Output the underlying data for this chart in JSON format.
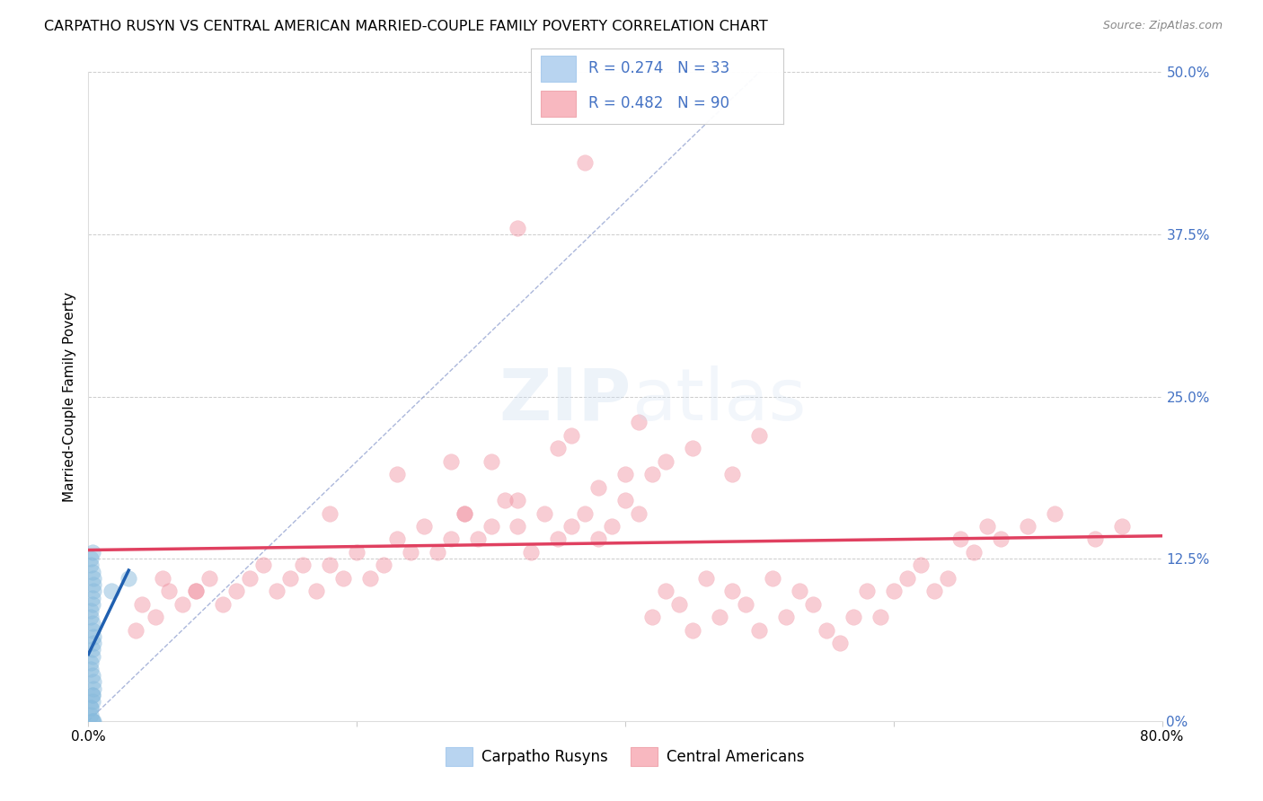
{
  "title": "CARPATHO RUSYN VS CENTRAL AMERICAN MARRIED-COUPLE FAMILY POVERTY CORRELATION CHART",
  "source": "Source: ZipAtlas.com",
  "ylabel": "Married-Couple Family Poverty",
  "xlim": [
    0.0,
    0.8
  ],
  "ylim": [
    0.0,
    0.5
  ],
  "yticks": [
    0.0,
    0.125,
    0.25,
    0.375,
    0.5
  ],
  "ytick_labels": [
    "0%",
    "12.5%",
    "25.0%",
    "37.5%",
    "50.0%"
  ],
  "xtick_labels": [
    "0.0%",
    "",
    "",
    "",
    "80.0%"
  ],
  "legend_label1": "Carpatho Rusyns",
  "legend_label2": "Central Americans",
  "blue_scatter_color": "#88bbdd",
  "pink_scatter_color": "#f090a0",
  "blue_line_color": "#2060b0",
  "pink_line_color": "#e04060",
  "diag_line_color": "#8899cc",
  "text_blue": "#4472c4",
  "legend_blue_fill": "#b8d4f0",
  "legend_pink_fill": "#f8b8c0",
  "grid_color": "#cccccc",
  "R_blue": 0.274,
  "N_blue": 33,
  "R_pink": 0.482,
  "N_pink": 90,
  "blue_x": [
    0.002,
    0.003,
    0.004,
    0.002,
    0.003,
    0.004,
    0.003,
    0.002,
    0.003,
    0.004,
    0.003,
    0.002,
    0.003,
    0.004,
    0.002,
    0.003,
    0.004,
    0.003,
    0.002,
    0.003,
    0.004,
    0.003,
    0.002,
    0.003,
    0.004,
    0.003,
    0.002,
    0.003,
    0.004,
    0.003,
    0.002,
    0.03,
    0.017
  ],
  "blue_y": [
    0.01,
    0.02,
    0.03,
    0.04,
    0.05,
    0.06,
    0.07,
    0.08,
    0.09,
    0.1,
    0.0,
    0.01,
    0.02,
    0.0,
    0.12,
    0.13,
    0.11,
    0.0,
    0.005,
    0.015,
    0.025,
    0.035,
    0.045,
    0.055,
    0.065,
    0.075,
    0.085,
    0.095,
    0.105,
    0.115,
    0.125,
    0.11,
    0.1
  ],
  "pink_x": [
    0.035,
    0.04,
    0.05,
    0.06,
    0.055,
    0.07,
    0.08,
    0.09,
    0.1,
    0.11,
    0.12,
    0.13,
    0.14,
    0.15,
    0.16,
    0.17,
    0.18,
    0.19,
    0.2,
    0.21,
    0.22,
    0.23,
    0.24,
    0.25,
    0.26,
    0.27,
    0.28,
    0.29,
    0.3,
    0.31,
    0.32,
    0.33,
    0.34,
    0.35,
    0.36,
    0.37,
    0.38,
    0.39,
    0.4,
    0.41,
    0.42,
    0.43,
    0.44,
    0.45,
    0.46,
    0.47,
    0.48,
    0.49,
    0.5,
    0.51,
    0.52,
    0.53,
    0.54,
    0.55,
    0.56,
    0.57,
    0.58,
    0.59,
    0.6,
    0.61,
    0.62,
    0.63,
    0.64,
    0.65,
    0.66,
    0.67,
    0.68,
    0.7,
    0.72,
    0.75,
    0.77,
    0.3,
    0.35,
    0.4,
    0.45,
    0.5,
    0.37,
    0.42,
    0.28,
    0.32,
    0.38,
    0.43,
    0.48,
    0.36,
    0.41,
    0.32,
    0.27,
    0.23,
    0.18,
    0.08
  ],
  "pink_y": [
    0.07,
    0.09,
    0.08,
    0.1,
    0.11,
    0.09,
    0.1,
    0.11,
    0.09,
    0.1,
    0.11,
    0.12,
    0.1,
    0.11,
    0.12,
    0.1,
    0.12,
    0.11,
    0.13,
    0.11,
    0.12,
    0.14,
    0.13,
    0.15,
    0.13,
    0.14,
    0.16,
    0.14,
    0.15,
    0.17,
    0.15,
    0.13,
    0.16,
    0.14,
    0.15,
    0.16,
    0.14,
    0.15,
    0.17,
    0.16,
    0.08,
    0.1,
    0.09,
    0.07,
    0.11,
    0.08,
    0.1,
    0.09,
    0.07,
    0.11,
    0.08,
    0.1,
    0.09,
    0.07,
    0.06,
    0.08,
    0.1,
    0.08,
    0.1,
    0.11,
    0.12,
    0.1,
    0.11,
    0.14,
    0.13,
    0.15,
    0.14,
    0.15,
    0.16,
    0.14,
    0.15,
    0.2,
    0.21,
    0.19,
    0.21,
    0.22,
    0.43,
    0.19,
    0.16,
    0.17,
    0.18,
    0.2,
    0.19,
    0.22,
    0.23,
    0.38,
    0.2,
    0.19,
    0.16,
    0.1
  ]
}
